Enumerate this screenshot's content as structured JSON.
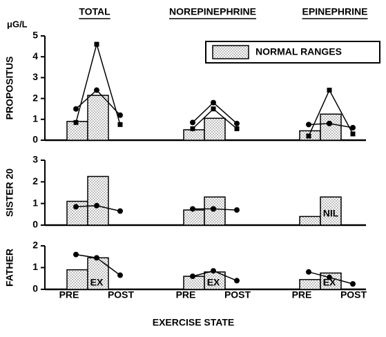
{
  "chart_data": {
    "type": "combo",
    "unit": "μG/L",
    "column_titles": [
      "TOTAL",
      "NOREPINEPHRINE",
      "EPINEPHRINE"
    ],
    "legend": "NORMAL RANGES",
    "xlabel": "EXERCISE STATE",
    "categories": [
      "PRE",
      "EX",
      "POST"
    ],
    "color": "#000000",
    "panels": [
      {
        "ylabel": "PROPOSITUS",
        "ylim": [
          0,
          5
        ],
        "yticks": [
          0,
          1,
          2,
          3,
          4,
          5
        ],
        "groups": [
          {
            "normal": [
              0.9,
              2.15
            ],
            "series": [
              {
                "marker": "square",
                "values": [
                  0.85,
                  4.6,
                  0.75
                ]
              },
              {
                "marker": "circle",
                "values": [
                  1.5,
                  2.4,
                  1.2
                ]
              }
            ]
          },
          {
            "normal": [
              0.5,
              1.05
            ],
            "series": [
              {
                "marker": "square",
                "values": [
                  0.55,
                  1.5,
                  0.55
                ]
              },
              {
                "marker": "circle",
                "values": [
                  0.85,
                  1.8,
                  0.8
                ]
              }
            ]
          },
          {
            "normal": [
              0.45,
              1.25
            ],
            "series": [
              {
                "marker": "square",
                "values": [
                  0.2,
                  2.4,
                  0.3
                ]
              },
              {
                "marker": "circle",
                "values": [
                  0.75,
                  0.8,
                  0.6
                ]
              }
            ]
          }
        ]
      },
      {
        "ylabel": "SISTER 20",
        "ylim": [
          0,
          3
        ],
        "yticks": [
          0,
          1,
          2,
          3
        ],
        "groups": [
          {
            "normal": [
              1.1,
              2.25
            ],
            "series": [
              {
                "marker": "circle",
                "values": [
                  0.85,
                  0.9,
                  0.65
                ]
              }
            ]
          },
          {
            "normal": [
              0.7,
              1.3
            ],
            "series": [
              {
                "marker": "circle",
                "values": [
                  0.75,
                  0.75,
                  0.7
                ]
              }
            ]
          },
          {
            "normal": [
              0.4,
              1.3
            ],
            "annotation": "NIL",
            "series": []
          }
        ]
      },
      {
        "ylabel": "FATHER",
        "ylim": [
          0,
          2
        ],
        "yticks": [
          0,
          1,
          2
        ],
        "groups": [
          {
            "normal": [
              0.9,
              1.45
            ],
            "series": [
              {
                "marker": "circle",
                "values": [
                  1.6,
                  1.45,
                  0.65
                ]
              }
            ]
          },
          {
            "normal": [
              0.6,
              0.8
            ],
            "series": [
              {
                "marker": "circle",
                "values": [
                  0.6,
                  0.85,
                  0.4
                ]
              }
            ]
          },
          {
            "normal": [
              0.45,
              0.75
            ],
            "series": [
              {
                "marker": "circle",
                "values": [
                  0.8,
                  0.55,
                  0.25
                ]
              }
            ]
          }
        ]
      }
    ]
  }
}
